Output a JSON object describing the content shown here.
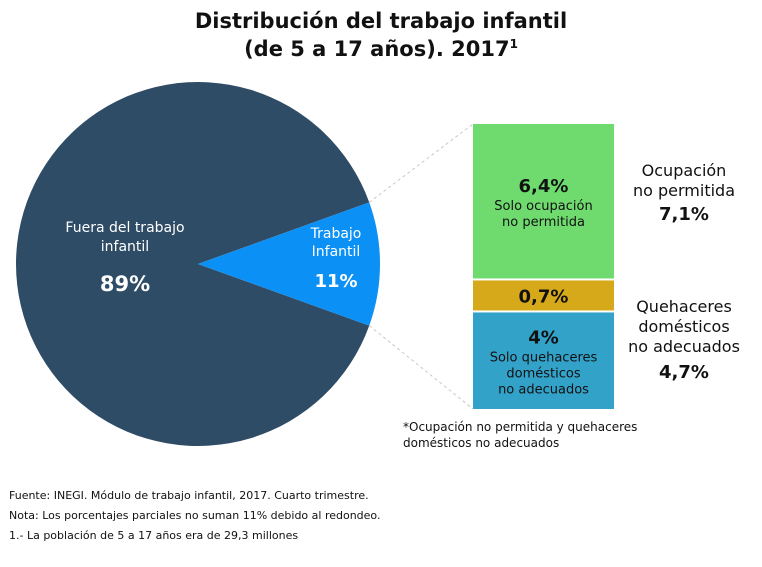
{
  "title": {
    "line1": "Distribución del trabajo infantil",
    "line2": "(de 5 a 17 años). 2017",
    "superscript": "1"
  },
  "chart_data": {
    "type": "pie",
    "slices": [
      {
        "label_lines": [
          "Fuera del trabajo",
          "infantil"
        ],
        "value": 89,
        "display": "89%",
        "color": "#2e4c66"
      },
      {
        "label_lines": [
          "Trabajo",
          "Infantil"
        ],
        "value": 11,
        "display": "11%",
        "color": "#0b90f5"
      }
    ],
    "breakdown": {
      "segments": [
        {
          "value": 6.4,
          "display": "6,4%",
          "label_lines": [
            "Solo ocupación",
            "no permitida"
          ],
          "color": "#6fdb6f"
        },
        {
          "value": 0.7,
          "display": "0,7%",
          "label_lines": [],
          "color": "#d6a91b"
        },
        {
          "value": 4,
          "display": "4%",
          "label_lines": [
            "Solo quehaceres",
            "domésticos",
            "no adecuados"
          ],
          "color": "#33a2c9"
        }
      ],
      "totals": [
        {
          "label_lines": [
            "Ocupación",
            "no permitida"
          ],
          "value": 7.1,
          "display": "7,1%"
        },
        {
          "label_lines": [
            "Quehaceres",
            "domésticos",
            "no adecuados"
          ],
          "value": 4.7,
          "display": "4,7%"
        }
      ],
      "note_lines": [
        "*Ocupación no permitida y quehaceres",
        "domésticos no adecuados"
      ]
    }
  },
  "footnotes": [
    "Fuente: INEGI. Módulo de trabajo infantil, 2017. Cuarto trimestre.",
    "Nota: Los porcentajes parciales no suman 11% debido al redondeo.",
    "1.- La población de 5 a 17 años era de 29,3 millones"
  ]
}
